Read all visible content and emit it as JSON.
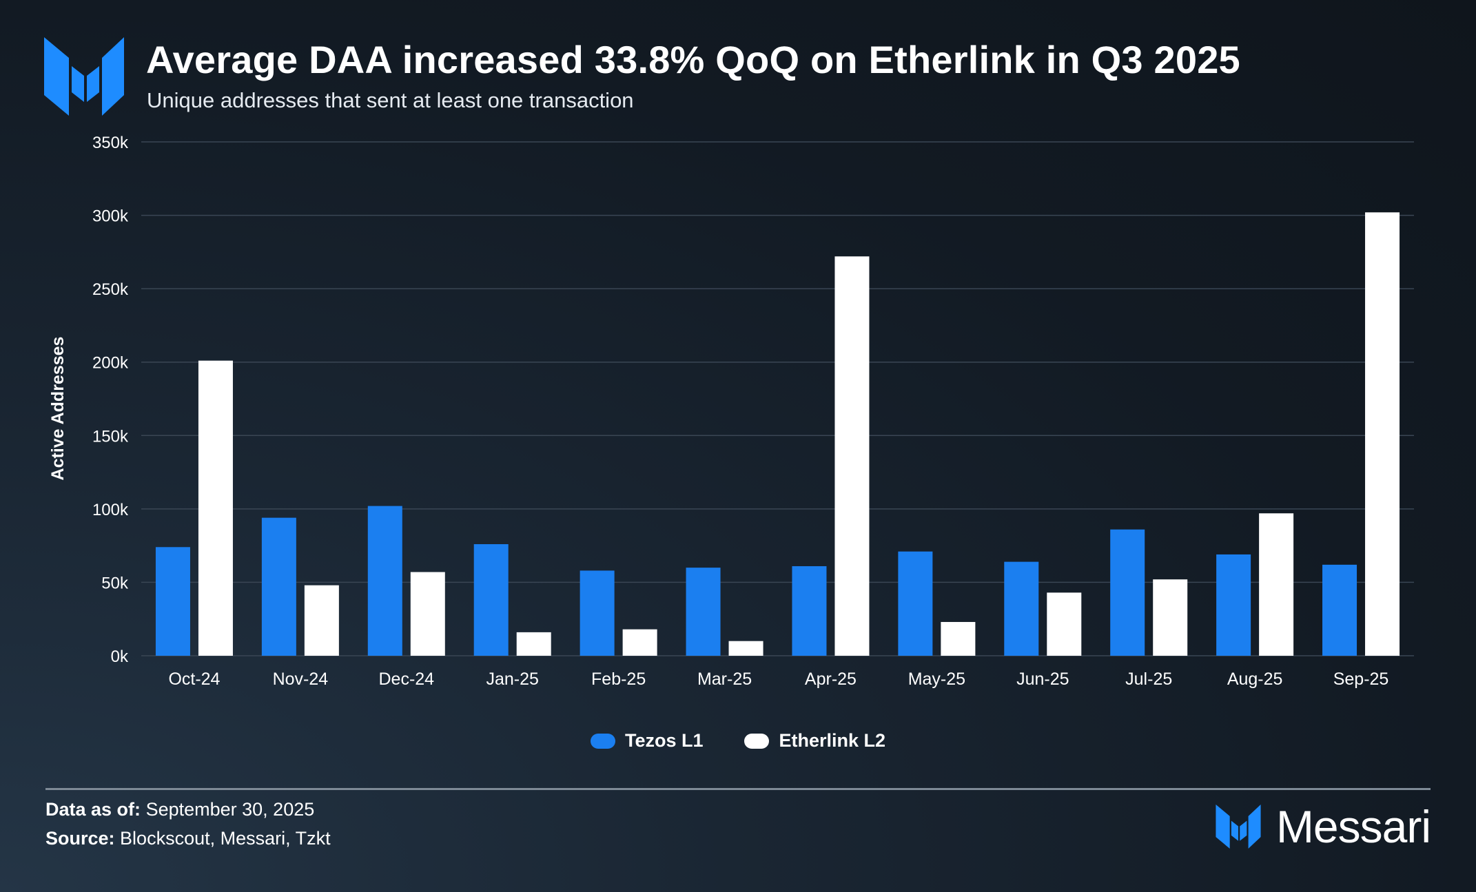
{
  "header": {
    "title": "Average DAA increased 33.8% QoQ on Etherlink in Q3 2025",
    "subtitle": "Unique addresses that sent at least one transaction"
  },
  "colors": {
    "tezos": "#1b7ff0",
    "etherlink": "#ffffff",
    "grid": "#3a4654",
    "brand_blue": "#1e8cff"
  },
  "legend": {
    "tezos_label": "Tezos L1",
    "etherlink_label": "Etherlink L2"
  },
  "footer": {
    "data_as_of_label": "Data as of:",
    "data_as_of_value": "September 30, 2025",
    "source_label": "Source:",
    "source_value": "Blockscout, Messari, Tzkt",
    "brand_name": "Messari"
  },
  "chart_data": {
    "type": "bar",
    "title": "Average DAA increased 33.8% QoQ on Etherlink in Q3 2025",
    "subtitle": "Unique addresses that sent at least one transaction",
    "xlabel": "",
    "ylabel": "Active Addresses",
    "ylim": [
      0,
      350000
    ],
    "yticks": [
      0,
      50000,
      100000,
      150000,
      200000,
      250000,
      300000,
      350000
    ],
    "ytick_labels": [
      "0k",
      "50k",
      "100k",
      "150k",
      "200k",
      "250k",
      "300k",
      "350k"
    ],
    "grid": true,
    "legend_position": "bottom",
    "categories": [
      "Oct-24",
      "Nov-24",
      "Dec-24",
      "Jan-25",
      "Feb-25",
      "Mar-25",
      "Apr-25",
      "May-25",
      "Jun-25",
      "Jul-25",
      "Aug-25",
      "Sep-25"
    ],
    "series": [
      {
        "name": "Tezos L1",
        "color": "#1b7ff0",
        "values": [
          74000,
          94000,
          102000,
          76000,
          58000,
          60000,
          61000,
          71000,
          64000,
          86000,
          69000,
          62000
        ]
      },
      {
        "name": "Etherlink L2",
        "color": "#ffffff",
        "values": [
          201000,
          48000,
          57000,
          16000,
          18000,
          10000,
          272000,
          23000,
          43000,
          52000,
          97000,
          302000
        ]
      }
    ]
  }
}
